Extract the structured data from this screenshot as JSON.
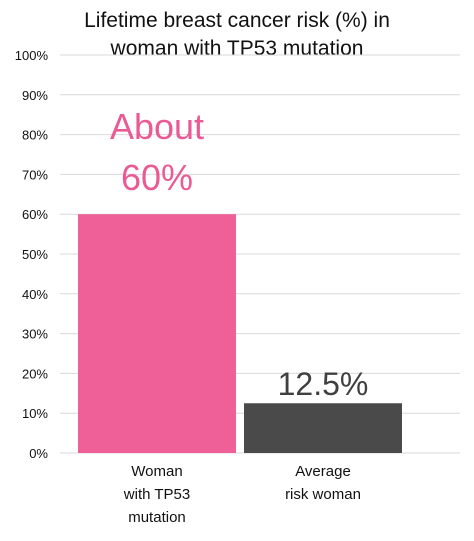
{
  "chart_data": {
    "type": "bar",
    "title_lines": [
      "Lifetime breast cancer risk (%) in",
      "woman with TP53 mutation"
    ],
    "categories": [
      [
        "Woman",
        "with TP53",
        "mutation"
      ],
      [
        "Average",
        "risk woman"
      ]
    ],
    "values": [
      60,
      12.5
    ],
    "bar_colors": [
      "#ef5f98",
      "#4a4a4a"
    ],
    "annotations": [
      {
        "lines": [
          "About",
          "60%"
        ],
        "color": "#ea5a94"
      },
      {
        "lines": [
          "12.5%"
        ],
        "color": "#404040"
      }
    ],
    "ylim": [
      0,
      100
    ],
    "yticks": [
      "0%",
      "10%",
      "20%",
      "30%",
      "40%",
      "50%",
      "60%",
      "70%",
      "80%",
      "90%",
      "100%"
    ],
    "grid": true
  }
}
